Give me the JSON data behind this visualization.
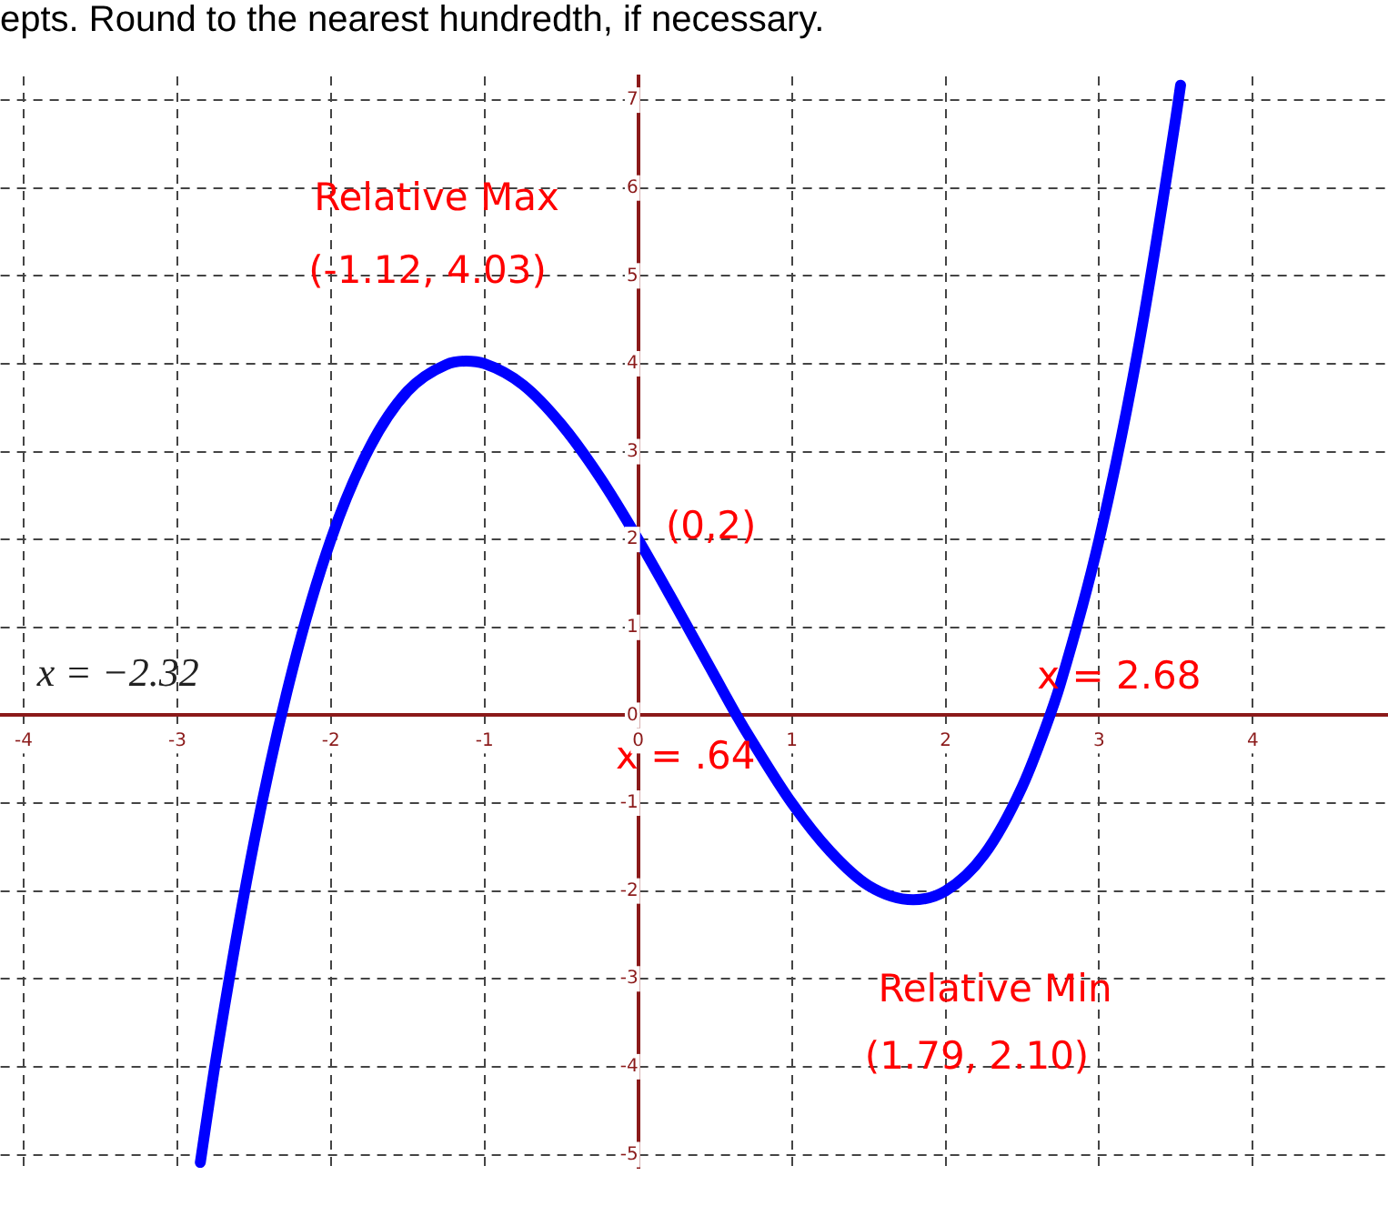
{
  "chart_data": {
    "type": "line",
    "title": "epts. Round to the nearest hundredth, if necessary.",
    "x": [
      -2.85,
      -2.75,
      -2.5,
      -2.25,
      -2,
      -1.75,
      -1.5,
      -1.25,
      -1.12,
      -1,
      -0.75,
      -0.5,
      -0.25,
      0,
      0.25,
      0.5,
      0.64,
      0.75,
      1,
      1.25,
      1.5,
      1.79,
      2,
      2.25,
      2.5,
      2.68,
      2.75,
      3,
      3.25,
      3.5,
      3.53
    ],
    "series": [
      {
        "color": "#0000ff",
        "values": [
          -5.09,
          -3.93,
          -1.44,
          0.52,
          2,
          3.04,
          3.69,
          3.99,
          4.03,
          4,
          3.76,
          3.31,
          2.71,
          2,
          1.23,
          0.44,
          0,
          -0.32,
          -1,
          -1.55,
          -1.94,
          -2.1,
          -2,
          -1.59,
          -0.81,
          0,
          0.37,
          2,
          4.13,
          6.81,
          7.17
        ]
      }
    ],
    "xlim": [
      -4.15,
      4.88
    ],
    "ylim": [
      -5.15,
      7.27
    ],
    "xticks": [
      -4,
      -3,
      -2,
      -1,
      0,
      1,
      2,
      3,
      4
    ],
    "yticks": [
      -5,
      -4,
      -3,
      -2,
      -1,
      0,
      1,
      2,
      3,
      4,
      5,
      6,
      7
    ],
    "grid": true,
    "legend": false,
    "marker": "none",
    "line_style": "solid",
    "annotations": [
      "Relative Max",
      "(-1.12, 4.03)",
      {
        "text": "(0,2)",
        "x": 0,
        "y": 2
      },
      {
        "text": "x = .64",
        "x": 0.64,
        "y": 0
      },
      {
        "text": "x = 2.68",
        "x": 2.68,
        "y": 0
      },
      "Relative Min",
      "(1.79, 2.10)",
      {
        "text": "x = −2.32",
        "x": -2.32,
        "y": 0
      }
    ]
  }
}
